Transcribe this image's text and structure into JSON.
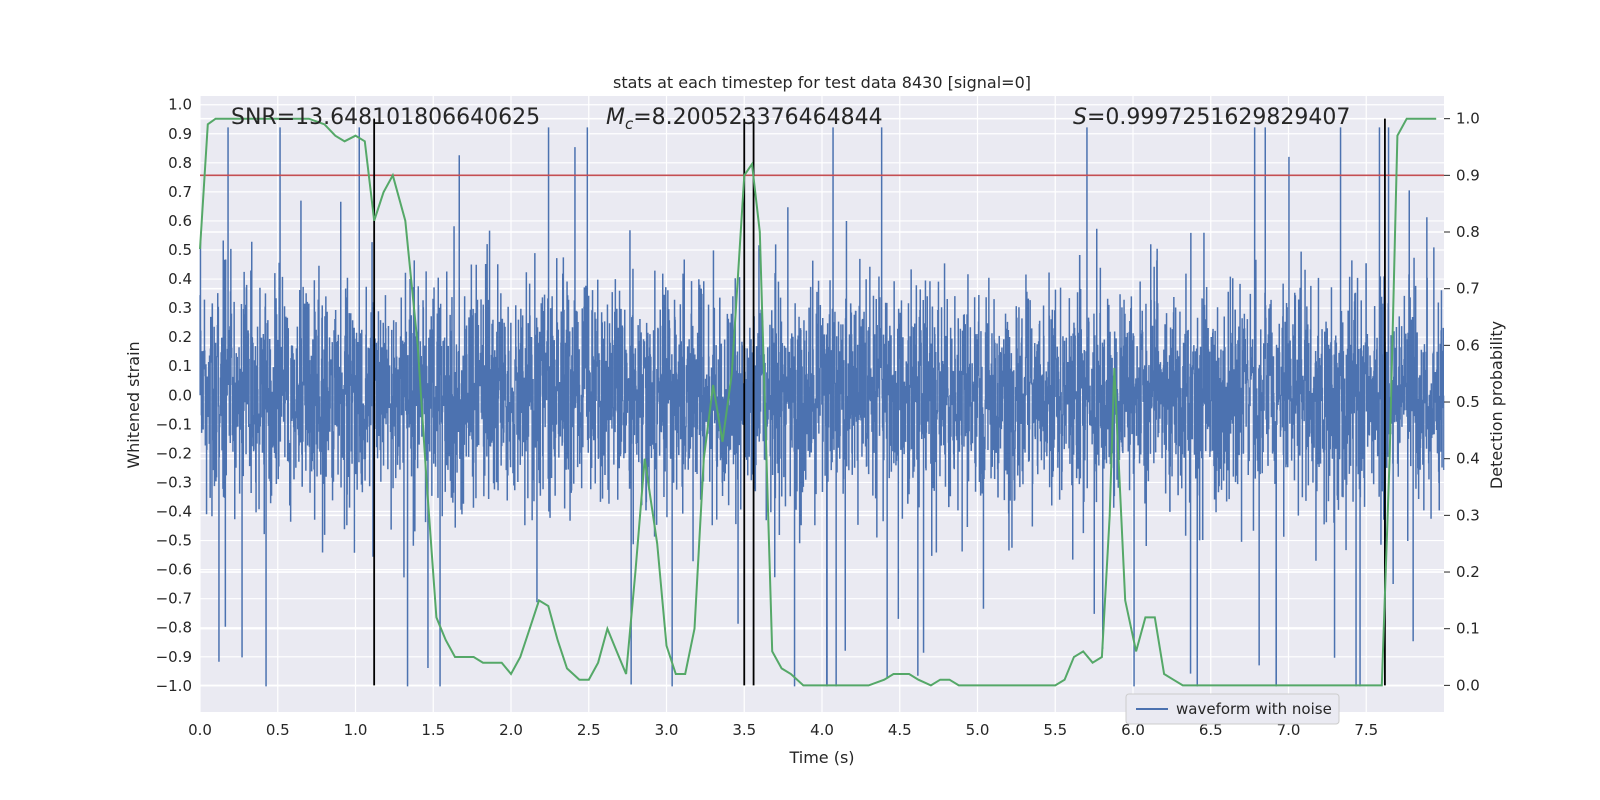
{
  "chart_data": {
    "type": "line",
    "title": "stats at each timestep for test data 8430 [signal=0]",
    "xlabel": "Time (s)",
    "ylabel": "Whitened strain",
    "y2label": "Detection probability",
    "xlim": [
      0.0,
      8.0
    ],
    "ylim": [
      -1.09,
      1.03
    ],
    "y2lim": [
      -0.047,
      1.04
    ],
    "xticks": [
      "0.0",
      "0.5",
      "1.0",
      "1.5",
      "2.0",
      "2.5",
      "3.0",
      "3.5",
      "4.0",
      "4.5",
      "5.0",
      "5.5",
      "6.0",
      "6.5",
      "7.0",
      "7.5"
    ],
    "yticks": [
      "1.0",
      "0.9",
      "0.8",
      "0.7",
      "0.6",
      "0.5",
      "0.4",
      "0.3",
      "0.2",
      "0.1",
      "0.0",
      "-0.1",
      "-0.2",
      "-0.3",
      "-0.4",
      "-0.5",
      "-0.6",
      "-0.7",
      "-0.8",
      "-0.9",
      "-1.0"
    ],
    "y2ticks": [
      "1.0",
      "0.9",
      "0.8",
      "0.7",
      "0.6",
      "0.5",
      "0.4",
      "0.3",
      "0.2",
      "0.1",
      "0.0"
    ],
    "grid": true,
    "legend": {
      "entries": [
        "waveform with noise"
      ],
      "placement": "lower-right"
    },
    "annotations": {
      "snr": "SNR=13.648101806640625",
      "mc_symbol": "M",
      "mc_sub": "c",
      "mc_value": "=8.200523376464844",
      "s_symbol": "S",
      "s_value": "=0.9997251629829407"
    },
    "threshold": 0.9,
    "vlines": [
      1.12,
      3.5,
      3.56,
      7.62
    ],
    "series": [
      {
        "name": "waveform with noise",
        "color": "#4c72b0",
        "axis": "left",
        "description": "dense whitened noise, approx range -1.0 to 1.0",
        "envelope_upper": [
          0.6,
          0.55,
          0.5,
          0.5,
          0.55,
          0.5,
          0.5,
          0.55,
          0.5,
          0.6,
          0.55,
          0.5,
          0.75,
          0.55,
          0.5,
          0.7,
          0.55,
          0.5,
          0.6,
          0.6,
          0.55,
          0.5,
          0.6,
          0.55,
          0.65,
          0.5,
          0.55,
          0.6,
          0.5,
          0.9,
          0.55,
          0.6,
          0.5,
          0.55,
          0.6,
          0.85,
          0.55,
          0.6,
          0.5,
          0.6,
          0.6,
          0.55,
          0.5,
          0.6,
          0.5,
          0.55,
          0.6,
          0.5,
          0.55,
          0.6,
          0.5,
          0.55,
          0.5,
          0.55,
          0.6,
          0.55,
          0.55,
          0.5,
          0.6,
          0.6,
          0.55,
          0.55,
          0.5,
          0.6,
          0.55,
          0.6,
          0.6,
          0.8,
          0.55,
          0.6,
          0.5,
          0.6,
          0.55,
          0.6,
          0.6,
          0.85,
          0.55,
          0.6,
          0.55,
          0.6
        ]
      },
      {
        "name": "detection probability",
        "color": "#55a868",
        "axis": "right",
        "x": [
          0.0,
          0.05,
          0.1,
          0.15,
          0.2,
          0.3,
          0.4,
          0.5,
          0.6,
          0.7,
          0.8,
          0.87,
          0.93,
          1.0,
          1.06,
          1.12,
          1.18,
          1.24,
          1.32,
          1.4,
          1.46,
          1.52,
          1.58,
          1.64,
          1.7,
          1.76,
          1.82,
          1.88,
          1.94,
          2.0,
          2.06,
          2.12,
          2.18,
          2.24,
          2.3,
          2.36,
          2.44,
          2.5,
          2.56,
          2.62,
          2.68,
          2.74,
          2.8,
          2.86,
          2.94,
          3.0,
          3.06,
          3.12,
          3.18,
          3.24,
          3.3,
          3.36,
          3.42,
          3.5,
          3.55,
          3.6,
          3.68,
          3.74,
          3.8,
          3.88,
          3.96,
          4.1,
          4.3,
          4.4,
          4.46,
          4.5,
          4.56,
          4.62,
          4.7,
          4.76,
          4.82,
          4.88,
          5.0,
          5.2,
          5.3,
          5.5,
          5.56,
          5.62,
          5.68,
          5.74,
          5.8,
          5.85,
          5.88,
          5.95,
          6.02,
          6.08,
          6.14,
          6.2,
          6.26,
          6.32,
          6.5,
          6.8,
          7.0,
          7.3,
          7.5,
          7.55,
          7.6,
          7.65,
          7.7,
          7.76,
          7.85,
          7.95
        ],
        "values": [
          0.77,
          0.99,
          1.0,
          1.0,
          1.0,
          1.0,
          1.0,
          1.0,
          1.0,
          1.0,
          0.99,
          0.97,
          0.96,
          0.97,
          0.96,
          0.82,
          0.87,
          0.9,
          0.82,
          0.6,
          0.35,
          0.12,
          0.08,
          0.05,
          0.05,
          0.05,
          0.04,
          0.04,
          0.04,
          0.02,
          0.05,
          0.1,
          0.15,
          0.14,
          0.08,
          0.03,
          0.01,
          0.01,
          0.04,
          0.1,
          0.06,
          0.02,
          0.2,
          0.4,
          0.25,
          0.07,
          0.02,
          0.02,
          0.1,
          0.4,
          0.53,
          0.43,
          0.55,
          0.9,
          0.92,
          0.8,
          0.06,
          0.03,
          0.02,
          0.0,
          0.0,
          0.0,
          0.0,
          0.01,
          0.02,
          0.02,
          0.02,
          0.01,
          0.0,
          0.01,
          0.01,
          0.0,
          0.0,
          0.0,
          0.0,
          0.0,
          0.01,
          0.05,
          0.06,
          0.04,
          0.05,
          0.3,
          0.56,
          0.15,
          0.06,
          0.12,
          0.12,
          0.02,
          0.01,
          0.0,
          0.0,
          0.0,
          0.0,
          0.0,
          0.0,
          0.0,
          0.0,
          0.4,
          0.97,
          1.0,
          1.0,
          1.0
        ]
      },
      {
        "name": "threshold",
        "color": "#c44e52",
        "axis": "right",
        "values": [
          0.9
        ]
      }
    ]
  }
}
